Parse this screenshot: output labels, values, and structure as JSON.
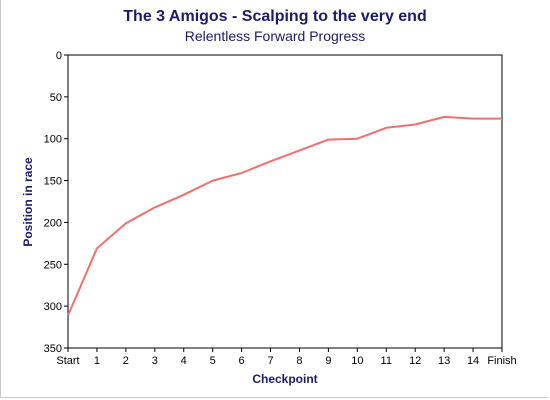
{
  "chart_data": {
    "type": "line",
    "title": "The 3 Amigos - Scalping to the very end",
    "subtitle": "Relentless Forward Progress",
    "xlabel": "Checkpoint",
    "ylabel": "Position in race",
    "categories": [
      "Start",
      "1",
      "2",
      "3",
      "4",
      "5",
      "6",
      "7",
      "8",
      "9",
      "10",
      "11",
      "12",
      "13",
      "14",
      "Finish"
    ],
    "y_ticks": [
      "0",
      "50",
      "100",
      "150",
      "200",
      "250",
      "300",
      "350"
    ],
    "ylim": [
      0,
      350
    ],
    "y_reversed": true,
    "grid": false,
    "series": [
      {
        "values": [
          311,
          231,
          201,
          182,
          167,
          150,
          141,
          127,
          114,
          101,
          100,
          87,
          83,
          74,
          76,
          76
        ],
        "color": "#f07070"
      }
    ]
  }
}
